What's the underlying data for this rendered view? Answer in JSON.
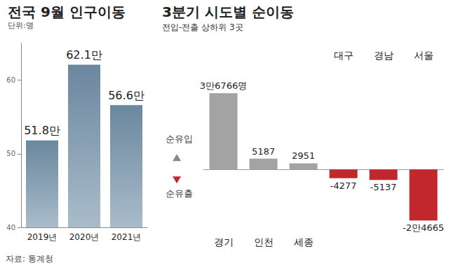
{
  "chart_data": [
    {
      "type": "bar",
      "title": "전국 9월 인구이동",
      "subtitle": "단위:명",
      "categories": [
        "2019년",
        "2020년",
        "2021년"
      ],
      "values": [
        51.8,
        62.1,
        56.6
      ],
      "value_labels": [
        "51.8만",
        "62.1만",
        "56.6만"
      ],
      "color": "#6b879e",
      "ylim": [
        40,
        65
      ],
      "yticks": [
        40,
        50,
        60
      ],
      "grid": false,
      "data_labels": true,
      "source": "자료: 통계청"
    },
    {
      "type": "bar",
      "title": "3분기 시도별 순이동",
      "subtitle": "전입-전출 상하위 3곳",
      "categories": [
        "경기",
        "인천",
        "세종",
        "대구",
        "경남",
        "서울"
      ],
      "values": [
        36766,
        5187,
        2951,
        -4277,
        -5137,
        -24665
      ],
      "value_labels": [
        "3만6766명",
        "5187",
        "2951",
        "-4277",
        "-5137",
        "-2만4665"
      ],
      "colors": [
        "#a3a3a3",
        "#a3a3a3",
        "#a3a3a3",
        "#c1272d",
        "#c1272d",
        "#c1272d"
      ],
      "ylim": [
        -30000,
        50000
      ],
      "tick_labels": "x",
      "grid": false,
      "data_labels": true,
      "annotations": [
        "순유입",
        "순유출"
      ]
    }
  ]
}
